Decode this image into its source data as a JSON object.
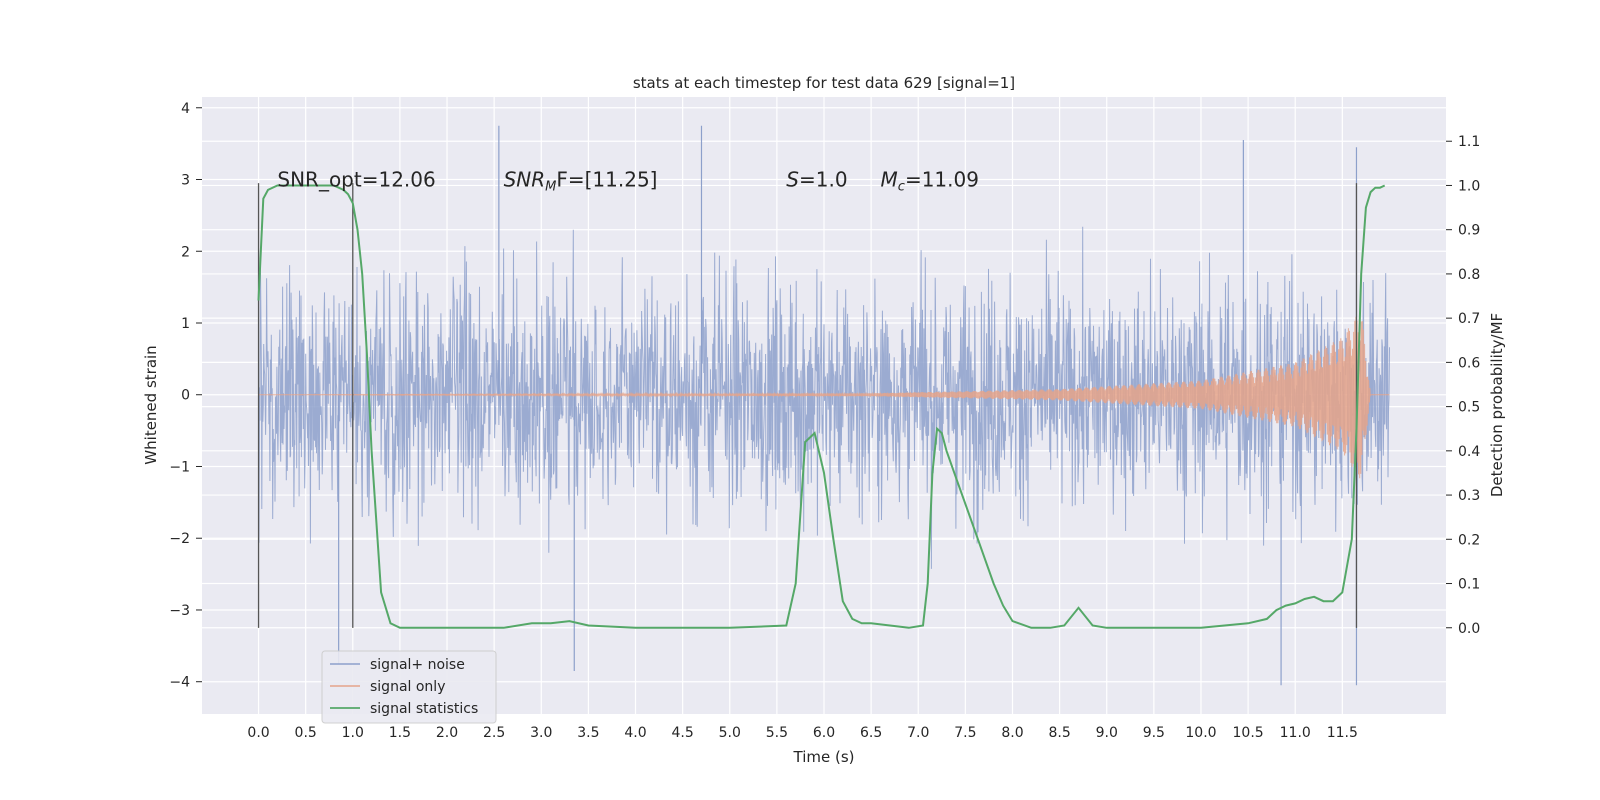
{
  "chart_data": {
    "type": "line",
    "title": "stats at each timestep for test data 629 [signal=1]",
    "xlabel": "Time (s)",
    "ylabel_left": "Whitened strain",
    "ylabel_right": "Detection probability/MF",
    "xlim": [
      -0.6,
      12.6
    ],
    "ylim_left": [
      -4.45,
      4.15
    ],
    "ylim_right": [
      -0.195,
      1.2
    ],
    "x_ticks": [
      "0.0",
      "0.5",
      "1.0",
      "1.5",
      "2.0",
      "2.5",
      "3.0",
      "3.5",
      "4.0",
      "4.5",
      "5.0",
      "5.5",
      "6.0",
      "6.5",
      "7.0",
      "7.5",
      "8.0",
      "8.5",
      "9.0",
      "9.5",
      "10.0",
      "10.5",
      "11.0",
      "11.5"
    ],
    "y_left_ticks": [
      "4",
      "3",
      "2",
      "1",
      "0",
      "−1",
      "−2",
      "−3",
      "−4"
    ],
    "y_left_tick_values": [
      4,
      3,
      2,
      1,
      0,
      -1,
      -2,
      -3,
      -4
    ],
    "y_right_ticks": [
      "1.1",
      "1.0",
      "0.9",
      "0.8",
      "0.7",
      "0.6",
      "0.5",
      "0.4",
      "0.3",
      "0.2",
      "0.1",
      "0.0"
    ],
    "y_right_tick_values": [
      1.1,
      1.0,
      0.9,
      0.8,
      0.7,
      0.6,
      0.5,
      0.4,
      0.3,
      0.2,
      0.1,
      0.0
    ],
    "grid": true,
    "background": "#eaeaf2",
    "annotations": [
      {
        "text": "SNR_opt=12.06",
        "x": 0.2,
        "y": 3.0
      },
      {
        "italic": "SNR",
        "sub": "M",
        "rest": "F=[11.25]",
        "x": 2.6,
        "y": 3.0
      },
      {
        "italic": "S",
        "rest": "=1.0",
        "x": 5.6,
        "y": 3.0
      },
      {
        "italic": "M",
        "sub": "c",
        "rest": "=11.09",
        "x": 6.6,
        "y": 3.0
      }
    ],
    "vertical_lines": [
      0.0,
      1.0,
      11.65
    ],
    "vline_ymin": -3.25,
    "vline_ymax": 2.95,
    "series": [
      {
        "name": "signal+ noise",
        "color": "#8da0cb",
        "x_range": [
          0.0,
          12.0
        ],
        "envelope_upper_approx": 1.8,
        "envelope_lower_approx": -1.9,
        "peaks": [
          {
            "x": 2.55,
            "y": 3.75
          },
          {
            "x": 4.7,
            "y": 3.75
          },
          {
            "x": 10.45,
            "y": 3.55
          },
          {
            "x": 11.65,
            "y": 3.45
          },
          {
            "x": 3.35,
            "y": -3.85
          },
          {
            "x": 10.85,
            "y": -4.05
          },
          {
            "x": 11.65,
            "y": -4.05
          },
          {
            "x": 0.85,
            "y": -3.75
          }
        ]
      },
      {
        "name": "signal only",
        "color": "#e5a38a",
        "x_range": [
          0.0,
          12.0
        ],
        "amplitude_points": [
          [
            0.0,
            0.0
          ],
          [
            6.5,
            0.02
          ],
          [
            8.5,
            0.08
          ],
          [
            10.0,
            0.2
          ],
          [
            11.0,
            0.45
          ],
          [
            11.5,
            0.8
          ],
          [
            11.7,
            1.2
          ],
          [
            11.8,
            0.0
          ]
        ]
      },
      {
        "name": "signal statistics",
        "color": "#55a868",
        "axis": "right",
        "x": [
          0.0,
          0.05,
          0.1,
          0.2,
          0.3,
          0.5,
          0.7,
          0.8,
          0.9,
          0.95,
          1.0,
          1.05,
          1.1,
          1.15,
          1.2,
          1.3,
          1.4,
          1.5,
          1.6,
          2.0,
          2.6,
          2.9,
          3.1,
          3.3,
          3.5,
          4.0,
          5.0,
          5.6,
          5.7,
          5.8,
          5.9,
          6.0,
          6.1,
          6.2,
          6.3,
          6.4,
          6.5,
          6.7,
          6.9,
          7.05,
          7.1,
          7.15,
          7.2,
          7.25,
          7.3,
          7.4,
          7.6,
          7.8,
          7.9,
          8.0,
          8.2,
          8.4,
          8.55,
          8.7,
          8.85,
          9.0,
          9.5,
          10.0,
          10.5,
          10.7,
          10.8,
          10.9,
          11.0,
          11.1,
          11.2,
          11.3,
          11.4,
          11.5,
          11.6,
          11.65,
          11.7,
          11.75,
          11.8,
          11.85,
          11.9,
          11.95
        ],
        "values": [
          0.74,
          0.97,
          0.99,
          1.0,
          1.0,
          1.0,
          1.0,
          1.0,
          0.99,
          0.98,
          0.96,
          0.9,
          0.8,
          0.62,
          0.4,
          0.08,
          0.01,
          0.0,
          0.0,
          0.0,
          0.0,
          0.01,
          0.01,
          0.015,
          0.005,
          0.0,
          0.0,
          0.005,
          0.1,
          0.42,
          0.44,
          0.35,
          0.2,
          0.06,
          0.02,
          0.01,
          0.01,
          0.005,
          0.0,
          0.005,
          0.1,
          0.35,
          0.45,
          0.44,
          0.4,
          0.34,
          0.22,
          0.1,
          0.05,
          0.015,
          0.0,
          0.0,
          0.005,
          0.045,
          0.005,
          0.0,
          0.0,
          0.0,
          0.01,
          0.02,
          0.04,
          0.05,
          0.055,
          0.065,
          0.07,
          0.06,
          0.06,
          0.08,
          0.2,
          0.45,
          0.8,
          0.95,
          0.985,
          0.995,
          0.995,
          1.0
        ]
      }
    ],
    "legend": {
      "placement": "lower-left",
      "entries": [
        {
          "label": "signal+ noise",
          "color": "#8da0cb"
        },
        {
          "label": "signal only",
          "color": "#e5a38a"
        },
        {
          "label": "signal statistics",
          "color": "#55a868"
        }
      ]
    }
  }
}
